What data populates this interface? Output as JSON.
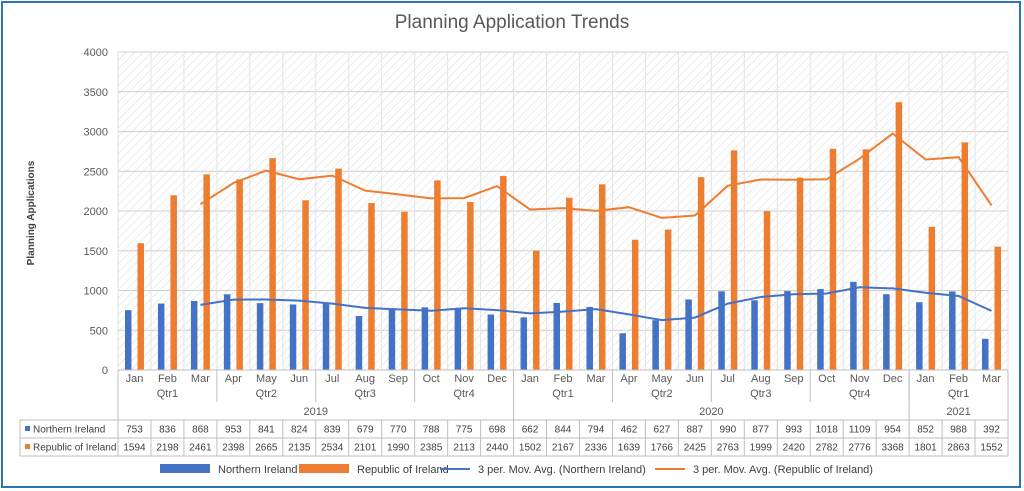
{
  "chart_data": {
    "type": "bar",
    "title": "Planning Application Trends",
    "ylabel": "Planning Applications",
    "ylim": [
      0,
      4000
    ],
    "yticks": [
      0,
      500,
      1000,
      1500,
      2000,
      2500,
      3000,
      3500,
      4000
    ],
    "grid": true,
    "legend_position": "bottom",
    "months": [
      "Jan",
      "Feb",
      "Mar",
      "Apr",
      "May",
      "Jun",
      "Jul",
      "Aug",
      "Sep",
      "Oct",
      "Nov",
      "Dec",
      "Jan",
      "Feb",
      "Mar",
      "Apr",
      "May",
      "Jun",
      "Jul",
      "Aug",
      "Sep",
      "Oct",
      "Nov",
      "Dec",
      "Jan",
      "Feb",
      "Mar"
    ],
    "quarters": [
      {
        "label": "Qtr1",
        "start": 0,
        "count": 3
      },
      {
        "label": "Qtr2",
        "start": 3,
        "count": 3
      },
      {
        "label": "Qtr3",
        "start": 6,
        "count": 3
      },
      {
        "label": "Qtr4",
        "start": 9,
        "count": 3
      },
      {
        "label": "Qtr1",
        "start": 12,
        "count": 3
      },
      {
        "label": "Qtr2",
        "start": 15,
        "count": 3
      },
      {
        "label": "Qtr3",
        "start": 18,
        "count": 3
      },
      {
        "label": "Qtr4",
        "start": 21,
        "count": 3
      },
      {
        "label": "Qtr1",
        "start": 24,
        "count": 3
      }
    ],
    "years": [
      {
        "label": "2019",
        "start": 0,
        "count": 12
      },
      {
        "label": "2020",
        "start": 12,
        "count": 12
      },
      {
        "label": "2021",
        "start": 24,
        "count": 3
      }
    ],
    "series": [
      {
        "name": "Northern Ireland",
        "color": "#4472c4",
        "values": [
          753,
          836,
          868,
          953,
          841,
          824,
          839,
          679,
          770,
          788,
          775,
          698,
          662,
          844,
          794,
          462,
          627,
          887,
          990,
          877,
          993,
          1018,
          1109,
          954,
          852,
          988,
          392
        ]
      },
      {
        "name": "Republic of Ireland",
        "color": "#ed7d31",
        "values": [
          1594,
          2198,
          2461,
          2398,
          2665,
          2135,
          2534,
          2101,
          1990,
          2385,
          2113,
          2440,
          1502,
          2167,
          2336,
          1639,
          1766,
          2425,
          2763,
          1999,
          2420,
          2782,
          2776,
          3368,
          1801,
          2863,
          1552
        ]
      }
    ],
    "trendlines": [
      {
        "name": "3 per. Mov. Avg. (Northern Ireland)",
        "color": "#4472c4",
        "period": 3,
        "of": 0
      },
      {
        "name": "3 per. Mov. Avg. (Republic of Ireland)",
        "color": "#ed7d31",
        "period": 3,
        "of": 1
      }
    ]
  }
}
